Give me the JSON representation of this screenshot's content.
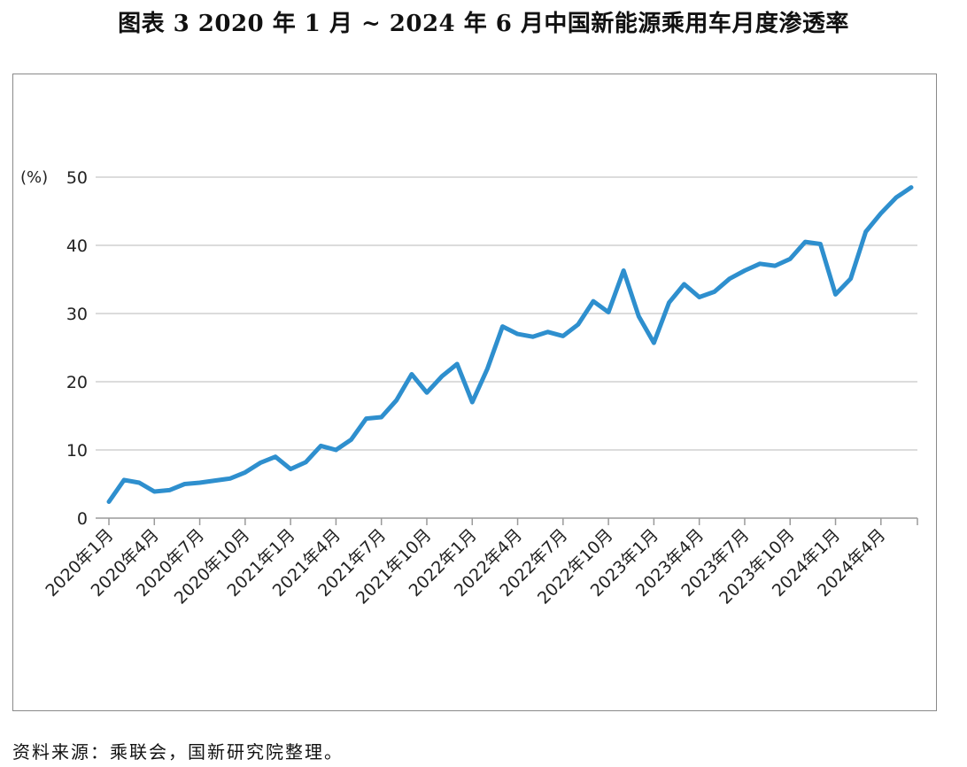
{
  "title": "图表 3 2020 年 1 月 ~ 2024 年 6 月中国新能源乘用车月度渗透率",
  "source": "资料来源：乘联会，国新研究院整理。",
  "chart_data": {
    "type": "line",
    "title": "图表 3 2020 年 1 月 ~ 2024 年 6 月中国新能源乘用车月度渗透率",
    "ylabel": "(%)",
    "ylim": [
      0,
      50
    ],
    "yticks": [
      0,
      10,
      20,
      30,
      40,
      50
    ],
    "grid": true,
    "line_color": "#2e8fce",
    "x_tick_labels": [
      "2020年1月",
      "2020年4月",
      "2020年7月",
      "2020年10月",
      "2021年1月",
      "2021年4月",
      "2021年7月",
      "2021年10月",
      "2022年1月",
      "2022年4月",
      "2022年7月",
      "2022年10月",
      "2023年1月",
      "2023年4月",
      "2023年7月",
      "2023年10月",
      "2024年1月",
      "2024年4月"
    ],
    "x": [
      "2020-01",
      "2020-02",
      "2020-03",
      "2020-04",
      "2020-05",
      "2020-06",
      "2020-07",
      "2020-08",
      "2020-09",
      "2020-10",
      "2020-11",
      "2020-12",
      "2021-01",
      "2021-02",
      "2021-03",
      "2021-04",
      "2021-05",
      "2021-06",
      "2021-07",
      "2021-08",
      "2021-09",
      "2021-10",
      "2021-11",
      "2021-12",
      "2022-01",
      "2022-02",
      "2022-03",
      "2022-04",
      "2022-05",
      "2022-06",
      "2022-07",
      "2022-08",
      "2022-09",
      "2022-10",
      "2022-11",
      "2022-12",
      "2023-01",
      "2023-02",
      "2023-03",
      "2023-04",
      "2023-05",
      "2023-06",
      "2023-07",
      "2023-08",
      "2023-09",
      "2023-10",
      "2023-11",
      "2023-12",
      "2024-01",
      "2024-02",
      "2024-03",
      "2024-04",
      "2024-05",
      "2024-06"
    ],
    "series": [
      {
        "values": [
          2.4,
          5.6,
          5.2,
          3.9,
          4.1,
          5.0,
          5.2,
          5.5,
          5.8,
          6.7,
          8.1,
          9.0,
          7.2,
          8.2,
          10.6,
          10.0,
          11.5,
          14.6,
          14.8,
          17.3,
          21.1,
          18.4,
          20.8,
          22.6,
          17.0,
          21.9,
          28.1,
          27.0,
          26.6,
          27.3,
          26.7,
          28.4,
          31.8,
          30.2,
          36.3,
          29.6,
          25.7,
          31.6,
          34.3,
          32.4,
          33.2,
          35.1,
          36.3,
          37.3,
          37.0,
          38.0,
          40.5,
          40.2,
          32.8,
          35.1,
          42.0,
          44.7,
          47.0,
          48.5
        ]
      }
    ]
  }
}
